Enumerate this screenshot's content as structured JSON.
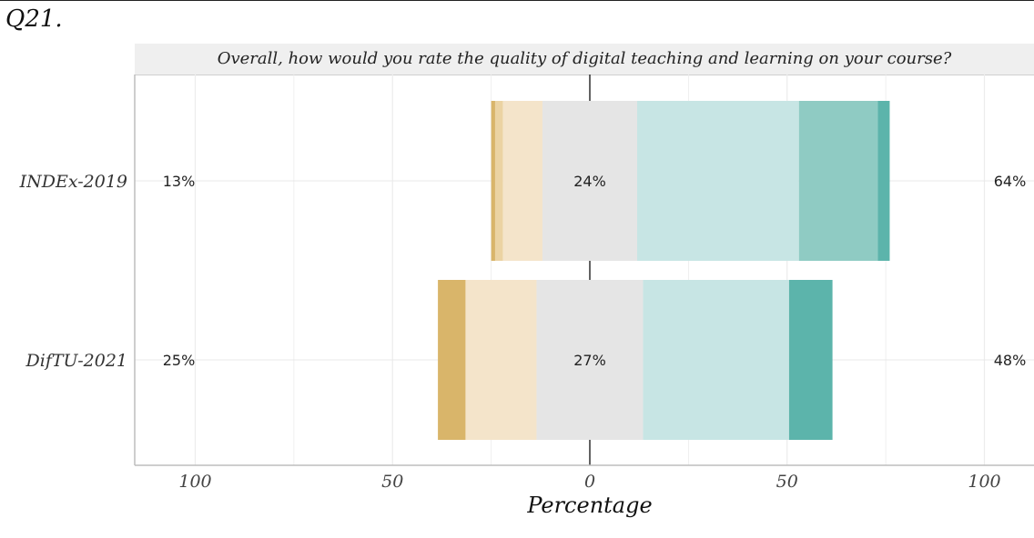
{
  "question_label": "Q21.",
  "chart_data": {
    "type": "bar",
    "title": "Overall, how would you rate the quality of digital teaching and learning on your course?",
    "xlabel": "Percentage",
    "ylabel": "",
    "orientation": "horizontal",
    "diverging": true,
    "xlim": [
      -100,
      100
    ],
    "x_ticks": [
      -100,
      -50,
      0,
      50,
      100
    ],
    "x_tick_labels": [
      "100",
      "50",
      "0",
      "50",
      "100"
    ],
    "categories": [
      "INDEx-2019",
      "DifTU-2021"
    ],
    "segment_colors": [
      "#d9b56a",
      "#ebd3a3",
      "#f4e4ca",
      "#e5e5e5",
      "#c7e5e4",
      "#8fcbc3",
      "#5cb4ab"
    ],
    "series": [
      {
        "category": "INDEx-2019",
        "segments": [
          1,
          2,
          10,
          24,
          41,
          20,
          3
        ]
      },
      {
        "category": "DifTU-2021",
        "segments": [
          7,
          0,
          18,
          27,
          37,
          0,
          11
        ]
      }
    ],
    "left_labels": [
      "13%",
      "25%"
    ],
    "center_labels": [
      "24%",
      "27%"
    ],
    "right_labels": [
      "64%",
      "48%"
    ],
    "grid": true
  }
}
